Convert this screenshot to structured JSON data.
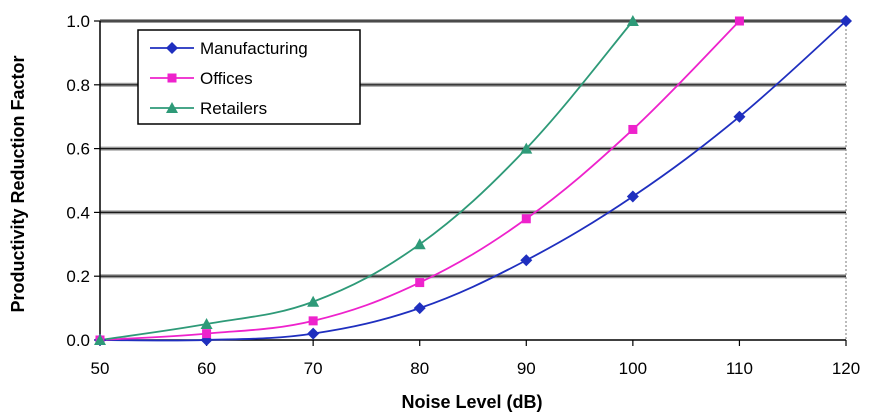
{
  "chart_data": {
    "type": "line",
    "title": "",
    "xlabel": "Noise Level (dB)",
    "ylabel": "Productivity Reduction Factor",
    "xlim": [
      50,
      120
    ],
    "ylim": [
      0,
      1.0
    ],
    "x_ticks": [
      "50",
      "60",
      "70",
      "80",
      "90",
      "100",
      "110",
      "120"
    ],
    "y_ticks": [
      "0.0",
      "0.2",
      "0.4",
      "0.6",
      "0.8",
      "1.0"
    ],
    "grid": "horizontal",
    "legend_position": "top-left",
    "series": [
      {
        "name": "Manufacturing",
        "color": "#1f2fbf",
        "marker": "diamond",
        "x": [
          50,
          60,
          70,
          80,
          90,
          100,
          110,
          120
        ],
        "y": [
          0.0,
          0.0,
          0.02,
          0.1,
          0.25,
          0.45,
          0.7,
          1.0
        ]
      },
      {
        "name": "Offices",
        "color": "#ee22cc",
        "marker": "square",
        "x": [
          50,
          60,
          70,
          80,
          90,
          100,
          110
        ],
        "y": [
          0.0,
          0.02,
          0.06,
          0.18,
          0.38,
          0.66,
          1.0
        ]
      },
      {
        "name": "Retailers",
        "color": "#2e9a78",
        "marker": "triangle",
        "x": [
          50,
          60,
          70,
          80,
          90,
          100
        ],
        "y": [
          0.0,
          0.05,
          0.12,
          0.3,
          0.6,
          1.0
        ]
      }
    ]
  }
}
